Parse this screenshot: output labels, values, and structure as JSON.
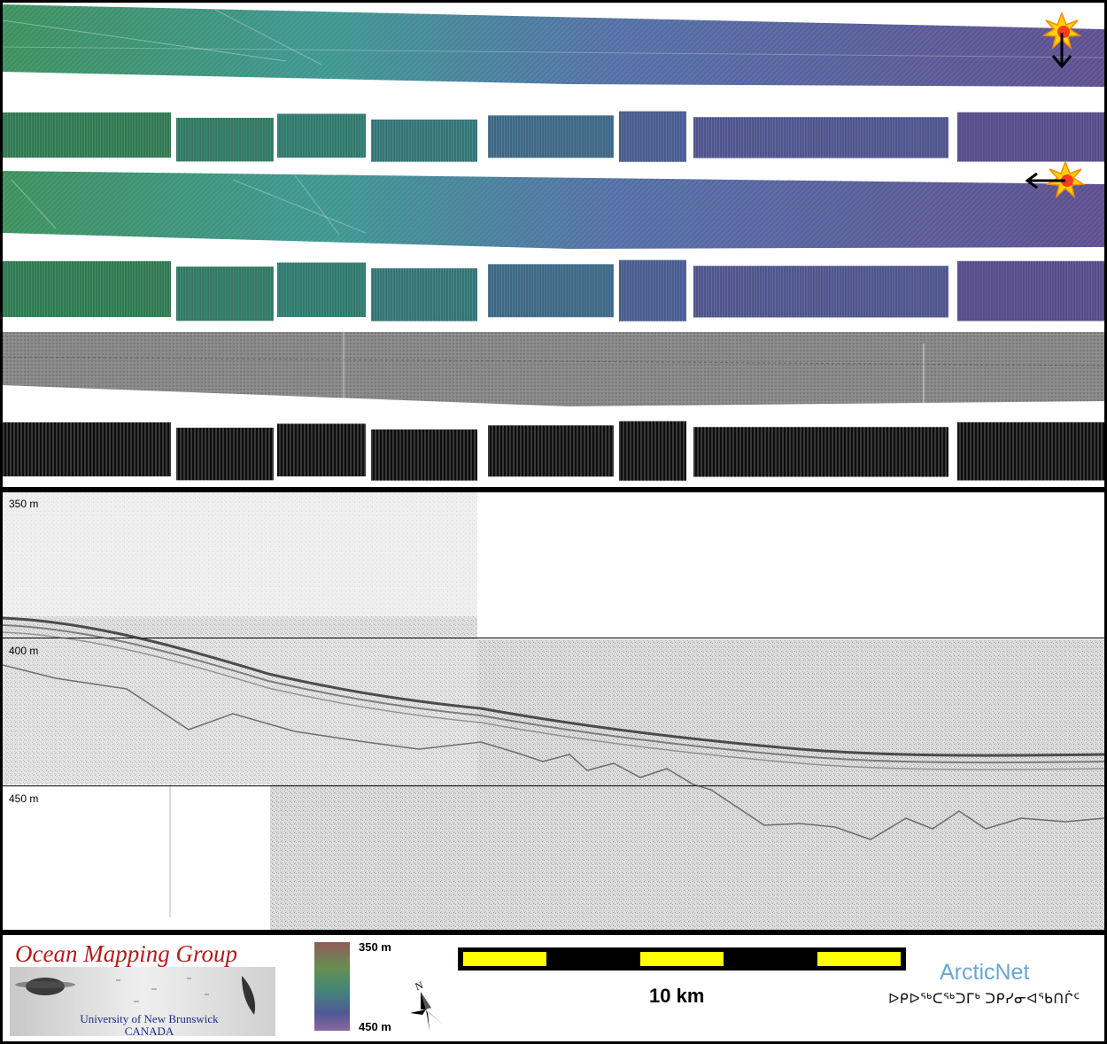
{
  "profile": {
    "depth_labels": [
      "350 m",
      "400 m",
      "450 m"
    ]
  },
  "legend": {
    "organization": "Ocean Mapping Group",
    "university_line1": "University of New Brunswick",
    "university_line2": "CANADA",
    "colorbar": {
      "top_label": "350 m",
      "bottom_label": "450 m",
      "colors": [
        "#d98a8a",
        "#8fcf7a",
        "#5cb8a8",
        "#6c7ad0",
        "#c08ad8"
      ]
    },
    "north_label": "N",
    "scale_label": "10 km",
    "scale_colors": [
      "#ffff00",
      "#000000"
    ],
    "partner": "ArcticNet",
    "partner_syllabics": "ᐅᑭᐅᖅᑕᖅᑐᒥᒃ ᑐᑭᓯᓂᐊᖃᑎᒌᑦ"
  },
  "strips": {
    "palette_start": "#3f8c63",
    "palette_mid": "#4f9a9a",
    "palette_end": "#6a5a9e",
    "sun_icon": "sun-illumination-icon",
    "arrow_icons": [
      "arrow-down-icon",
      "arrow-left-icon"
    ]
  }
}
